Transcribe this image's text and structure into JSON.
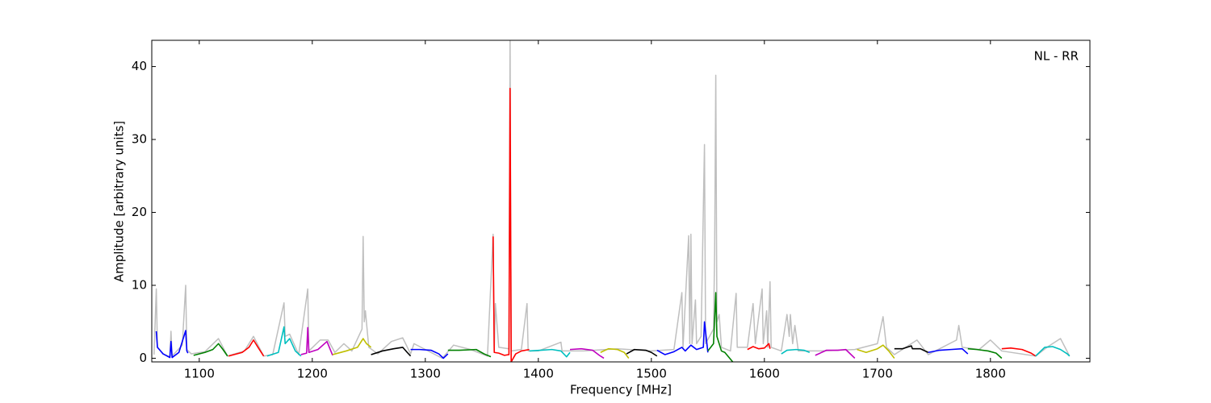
{
  "chart_data": {
    "type": "line",
    "annotation": "NL - RR",
    "xlabel": "Frequency [MHz]",
    "ylabel": "Amplitude [arbitrary units]",
    "xlim": [
      1058,
      1888
    ],
    "ylim": [
      -0.5,
      43.6
    ],
    "xticks": [
      1100,
      1200,
      1300,
      1400,
      1500,
      1600,
      1700,
      1800
    ],
    "yticks": [
      0,
      10,
      20,
      30,
      40
    ],
    "series": [
      {
        "color": "#bfbfbf",
        "x": [
          1060,
          1062,
          1063,
          1068,
          1074,
          1075,
          1076,
          1085,
          1088,
          1089,
          1093,
          1105,
          1117,
          1125,
          1140,
          1148,
          1157,
          1165,
          1175,
          1176,
          1180,
          1188,
          1196,
          1197,
          1207,
          1214,
          1220,
          1228,
          1235,
          1244,
          1245,
          1246,
          1247,
          1250,
          1258,
          1270,
          1280,
          1287,
          1290,
          1300,
          1315,
          1325,
          1340,
          1355,
          1360,
          1361,
          1362,
          1365,
          1374,
          1375,
          1376,
          1385,
          1390,
          1391,
          1400,
          1420,
          1421,
          1440,
          1470,
          1500,
          1520,
          1527,
          1528,
          1533,
          1534,
          1535,
          1536,
          1539,
          1540,
          1544,
          1547,
          1548,
          1555,
          1556,
          1557,
          1558,
          1560,
          1562,
          1570,
          1575,
          1576,
          1585,
          1590,
          1592,
          1598,
          1599,
          1602,
          1603,
          1605,
          1606,
          1615,
          1620,
          1622,
          1623,
          1625,
          1627,
          1630,
          1650,
          1680,
          1700,
          1705,
          1708,
          1715,
          1735,
          1745,
          1770,
          1772,
          1775,
          1790,
          1800,
          1810,
          1840,
          1850,
          1862,
          1870
        ],
        "values": [
          0.5,
          9.5,
          1.5,
          0.6,
          0.2,
          3.7,
          0.3,
          1.8,
          10,
          1.2,
          0.6,
          0.9,
          2.7,
          0.3,
          1,
          3,
          0.3,
          0.5,
          7.6,
          3,
          3.3,
          0.5,
          9.5,
          1,
          2.5,
          2.5,
          0.8,
          2,
          1,
          4,
          16.7,
          5,
          6.5,
          1.5,
          0.6,
          2.3,
          2.8,
          0.6,
          2,
          1.2,
          0,
          1.8,
          1.2,
          0.3,
          17,
          1,
          7.5,
          1.5,
          1.3,
          44,
          1,
          1.2,
          7.5,
          1,
          1,
          2.2,
          1,
          1,
          1.3,
          1,
          1.2,
          9,
          1.5,
          16.8,
          2,
          17,
          2,
          8,
          2,
          3,
          29.3,
          2,
          4,
          14.7,
          38.8,
          5,
          6,
          1.5,
          1,
          8.9,
          1.5,
          1.5,
          7.5,
          2,
          9.5,
          2,
          6.5,
          1.5,
          10.5,
          1.5,
          1,
          6,
          3,
          6,
          2,
          4.5,
          1,
          1,
          1.2,
          2,
          5.7,
          1.5,
          0.5,
          2.5,
          0.5,
          2.5,
          4.5,
          1.5,
          1.2,
          2.5,
          1,
          0.3,
          1.5,
          2.7,
          0.3
        ]
      },
      {
        "color": "#0000ff",
        "x": [
          1062,
          1063,
          1068,
          1074,
          1075,
          1076,
          1082,
          1088,
          1089,
          1090
        ],
        "values": [
          3.7,
          1.5,
          0.6,
          0.1,
          2.3,
          0.1,
          0.8,
          3.8,
          1,
          0.7
        ]
      },
      {
        "color": "#008000",
        "x": [
          1095,
          1105,
          1112,
          1117,
          1121,
          1125
        ],
        "values": [
          0.4,
          0.8,
          1.2,
          2,
          1.2,
          0.3
        ]
      },
      {
        "color": "#ff0000",
        "x": [
          1126,
          1138,
          1144,
          1148,
          1152,
          1157
        ],
        "values": [
          0.3,
          0.8,
          1.5,
          2.5,
          1.5,
          0.3
        ]
      },
      {
        "color": "#00bfbf",
        "x": [
          1160,
          1170,
          1175,
          1176,
          1180,
          1185,
          1190
        ],
        "values": [
          0.3,
          0.8,
          4.3,
          2,
          2.7,
          1,
          0.3
        ]
      },
      {
        "color": "#bf00bf",
        "x": [
          1190,
          1195,
          1196,
          1197,
          1205,
          1213,
          1218
        ],
        "values": [
          0.5,
          0.7,
          4.2,
          0.8,
          1.2,
          2.3,
          0.4
        ]
      },
      {
        "color": "#bfbf00",
        "x": [
          1218,
          1230,
          1240,
          1245,
          1248,
          1252
        ],
        "values": [
          0.5,
          1,
          1.5,
          2.7,
          2,
          1.5
        ]
      },
      {
        "color": "#000000",
        "x": [
          1252,
          1262,
          1272,
          1280,
          1284,
          1287
        ],
        "values": [
          0.5,
          1,
          1.3,
          1.5,
          0.8,
          0.3
        ]
      },
      {
        "color": "#0000ff",
        "x": [
          1287,
          1295,
          1305,
          1312,
          1316,
          1320
        ],
        "values": [
          1.2,
          1.2,
          1.1,
          0.6,
          0,
          0.6
        ]
      },
      {
        "color": "#008000",
        "x": [
          1320,
          1330,
          1345,
          1352,
          1358
        ],
        "values": [
          1.1,
          1.1,
          1.2,
          0.6,
          0.2
        ]
      },
      {
        "color": "#ff0000",
        "x": [
          1360,
          1361,
          1365,
          1370,
          1374,
          1375,
          1376,
          1380,
          1385,
          1392
        ],
        "values": [
          16.7,
          0.8,
          0.7,
          0.4,
          0.5,
          37,
          -0.5,
          0.6,
          1,
          1.2
        ]
      },
      {
        "color": "#00bfbf",
        "x": [
          1392,
          1402,
          1412,
          1420,
          1425,
          1428
        ],
        "values": [
          1,
          1.1,
          1.2,
          1,
          0.2,
          0.8
        ]
      },
      {
        "color": "#bf00bf",
        "x": [
          1428,
          1438,
          1448,
          1454,
          1458
        ],
        "values": [
          1.2,
          1.3,
          1.1,
          0.4,
          0
        ]
      },
      {
        "color": "#bfbf00",
        "x": [
          1455,
          1462,
          1470,
          1476,
          1480
        ],
        "values": [
          0.8,
          1.3,
          1.2,
          0.8,
          0
        ]
      },
      {
        "color": "#000000",
        "x": [
          1478,
          1485,
          1495,
          1500,
          1505
        ],
        "values": [
          0.6,
          1.2,
          1.1,
          0.8,
          0.3
        ]
      },
      {
        "color": "#0000ff",
        "x": [
          1505,
          1512,
          1520,
          1527,
          1530,
          1535,
          1540,
          1546,
          1547,
          1550
        ],
        "values": [
          1.1,
          0.5,
          0.9,
          1.5,
          1,
          1.8,
          1.2,
          1.5,
          5,
          0.8
        ]
      },
      {
        "color": "#008000",
        "x": [
          1550,
          1555,
          1557,
          1558,
          1562,
          1565,
          1572
        ],
        "values": [
          1,
          2,
          9,
          3,
          1,
          0.8,
          -0.5
        ]
      },
      {
        "color": "#ff0000",
        "x": [
          1585,
          1590,
          1595,
          1600,
          1604,
          1605
        ],
        "values": [
          1.2,
          1.6,
          1.3,
          1.4,
          2,
          1.3
        ]
      },
      {
        "color": "#00bfbf",
        "x": [
          1615,
          1620,
          1628,
          1635,
          1640
        ],
        "values": [
          0.6,
          1.1,
          1.2,
          1.1,
          0.8
        ]
      },
      {
        "color": "#bf00bf",
        "x": [
          1645,
          1655,
          1665,
          1672,
          1680
        ],
        "values": [
          0.4,
          1.1,
          1.1,
          1.2,
          0
        ]
      },
      {
        "color": "#bfbf00",
        "x": [
          1682,
          1690,
          1700,
          1705,
          1710,
          1715
        ],
        "values": [
          1.2,
          0.8,
          1.3,
          1.8,
          1,
          0
        ]
      },
      {
        "color": "#000000",
        "x": [
          1715,
          1722,
          1730,
          1731,
          1738,
          1745
        ],
        "values": [
          1.3,
          1.3,
          1.7,
          1.3,
          1.3,
          0.8
        ]
      },
      {
        "color": "#0000ff",
        "x": [
          1745,
          1755,
          1765,
          1775,
          1780
        ],
        "values": [
          0.8,
          1.1,
          1.2,
          1.3,
          0.6
        ]
      },
      {
        "color": "#008000",
        "x": [
          1780,
          1788,
          1798,
          1805,
          1810
        ],
        "values": [
          1.3,
          1.2,
          1,
          0.7,
          0
        ]
      },
      {
        "color": "#ff0000",
        "x": [
          1810,
          1818,
          1828,
          1836,
          1840
        ],
        "values": [
          1.3,
          1.4,
          1.2,
          0.7,
          0.3
        ]
      },
      {
        "color": "#00bfbf",
        "x": [
          1840,
          1848,
          1855,
          1862,
          1868,
          1870
        ],
        "values": [
          0.3,
          1.5,
          1.6,
          1.2,
          0.6,
          0.3
        ]
      }
    ]
  }
}
